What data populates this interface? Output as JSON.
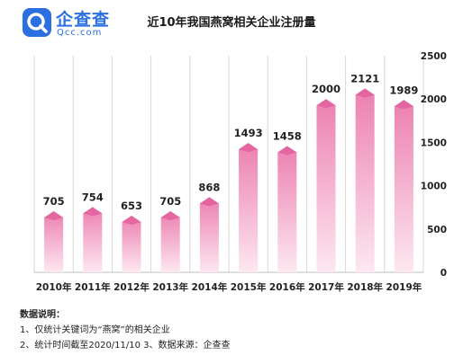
{
  "header": {
    "logo_cn": "企查查",
    "logo_en": "Qcc.com",
    "title": "近10年我国燕窝相关企业注册量"
  },
  "colors": {
    "bar_top": "#ec7fb0",
    "bar_bottom": "#fde8f1",
    "bar_cap": "#e2609c",
    "grid": "#d9d9d9",
    "logo": "#2b6fe0"
  },
  "chart_data": {
    "type": "bar",
    "title": "近10年我国燕窝相关企业注册量",
    "categories": [
      "2010年",
      "2011年",
      "2012年",
      "2013年",
      "2014年",
      "2015年",
      "2016年",
      "2017年",
      "2018年",
      "2019年"
    ],
    "values": [
      705,
      754,
      653,
      705,
      868,
      1493,
      1458,
      2000,
      2121,
      1989
    ],
    "value_labels": [
      "705",
      "754",
      "653",
      "705",
      "868",
      "1493",
      "1458",
      "2000",
      "2121",
      "1989"
    ],
    "yticks": [
      "0",
      "500",
      "1000",
      "1500",
      "2000",
      "2500"
    ],
    "ylim": [
      0,
      2500
    ],
    "y_axis_side": "right",
    "grid": true
  },
  "notes": {
    "title": "数据说明：",
    "line1": "1、仅统计关键词为“燕窝”的相关企业",
    "line2": "2、统计时间截至2020/11/10   3、数据来源：企查查"
  }
}
